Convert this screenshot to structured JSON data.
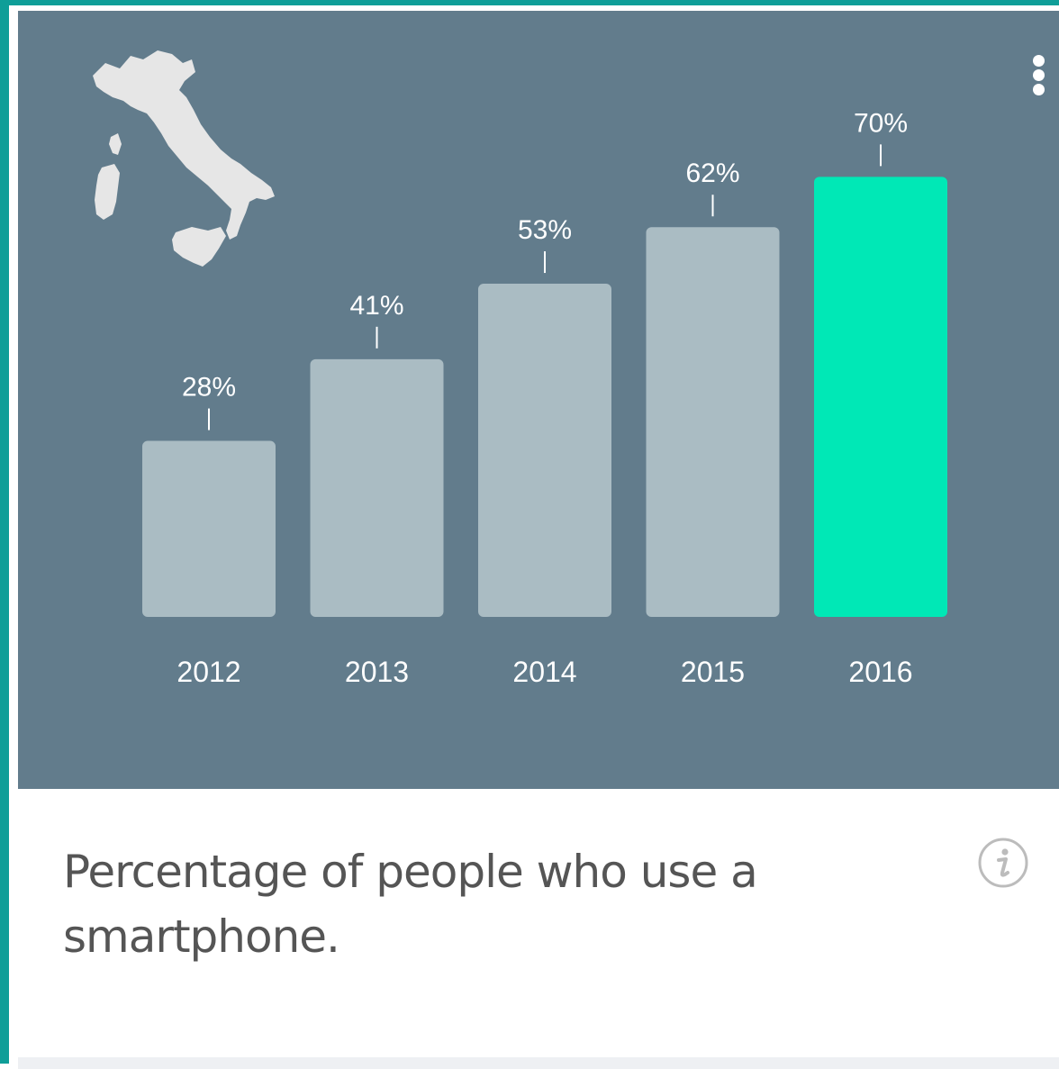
{
  "card": {
    "caption": "Percentage of people who use a smartphone.",
    "menu_icon": "more-vert-icon",
    "info_icon": "info-icon",
    "map_icon": "italy-map-icon"
  },
  "colors": {
    "panel_bg": "#627c8c",
    "bar_default": "#aabcc3",
    "bar_highlight": "#00e8b6",
    "label_text": "#ffffff",
    "accent_border": "#0f9e98"
  },
  "chart_data": {
    "type": "bar",
    "categories": [
      "2012",
      "2013",
      "2014",
      "2015",
      "2016"
    ],
    "values": [
      28,
      41,
      53,
      62,
      70
    ],
    "value_labels": [
      "28%",
      "41%",
      "53%",
      "62%",
      "70%"
    ],
    "highlight_index": 4,
    "title": "",
    "xlabel": "",
    "ylabel": "",
    "ylim": [
      0,
      100
    ],
    "grid": false,
    "legend": "none"
  }
}
